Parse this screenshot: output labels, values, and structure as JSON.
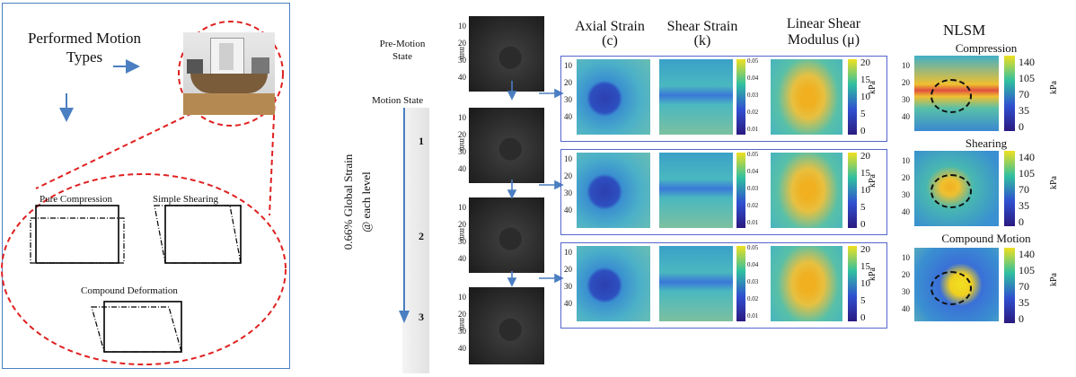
{
  "left": {
    "motion_title_line1": "Performed Motion",
    "motion_title_line2": "Types",
    "pure_compression": "Pure Compression",
    "simple_shearing": "Simple Shearing",
    "compound_deformation": "Compound Deformation"
  },
  "middle": {
    "pre_motion_line1": "Pre-Motion",
    "pre_motion_line2": "State",
    "motion_state": "Motion State",
    "global_strain": "0.66% Global Strain",
    "each_level": "@ each level",
    "states": [
      "1",
      "2",
      "3"
    ],
    "depth_unit": "mm",
    "depth_ticks": [
      "10",
      "20",
      "30",
      "40"
    ]
  },
  "headers": {
    "axial": "Axial Strain",
    "axial_sym": "(c)",
    "shear": "Shear Strain",
    "shear_sym": "(k)",
    "lsm_line1": "Linear Shear",
    "lsm_line2": "Modulus",
    "lsm_sym": "(μ)",
    "nlsm": "NLSM"
  },
  "colorbars": {
    "axial_ticks": [
      "10",
      "20",
      "30",
      "40"
    ],
    "shear_ticks": [
      "0.05",
      "0.04",
      "0.03",
      "0.02",
      "0.01"
    ],
    "lsm_ticks": [
      "20",
      "15",
      "10",
      "5",
      "0"
    ],
    "lsm_unit": "kPa",
    "nlsm_ticks": [
      "140",
      "105",
      "70",
      "35",
      "0"
    ],
    "nlsm_unit": "kPa"
  },
  "nlsm": {
    "compression": "Compression",
    "shearing": "Shearing",
    "compound": "Compound  Motion",
    "depth_ticks": [
      "10",
      "20",
      "30",
      "40"
    ]
  },
  "colors": {
    "panel_border": "#4a7fc1",
    "arrow": "#4a7fc1",
    "ellipse": "#e02020",
    "row_border": "#5566cc"
  }
}
